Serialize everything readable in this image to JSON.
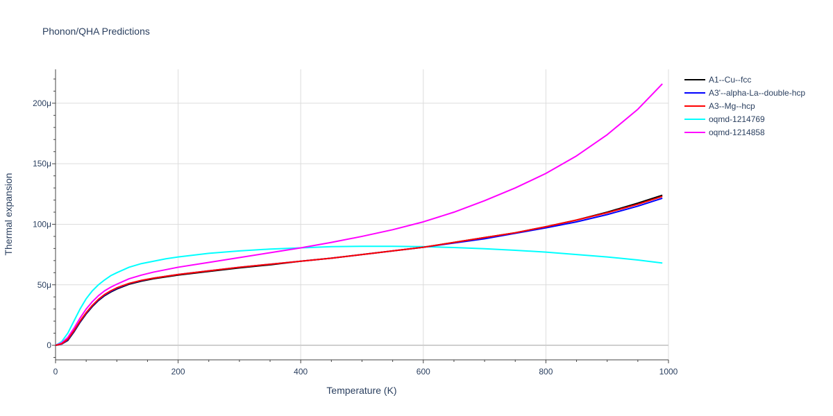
{
  "chart_data": {
    "type": "line",
    "title": "Phonon/QHA Predictions",
    "xlabel": "Temperature (K)",
    "ylabel": "Thermal expansion",
    "xlim": [
      0,
      1000
    ],
    "ylim": [
      -12,
      228
    ],
    "x_ticks": [
      0,
      200,
      400,
      600,
      800,
      1000
    ],
    "x_tick_labels": [
      "0",
      "200",
      "400",
      "600",
      "800",
      "1000"
    ],
    "y_ticks": [
      0,
      50,
      100,
      150,
      200
    ],
    "y_tick_labels": [
      "0",
      "50μ",
      "100μ",
      "150μ",
      "200μ"
    ],
    "grid": true,
    "legend_position": "top-right",
    "series": [
      {
        "name": "A1--Cu--fcc",
        "color": "#000000",
        "x": [
          0,
          10,
          20,
          30,
          40,
          50,
          60,
          70,
          80,
          90,
          100,
          120,
          140,
          160,
          180,
          200,
          250,
          300,
          350,
          400,
          450,
          500,
          550,
          600,
          650,
          700,
          750,
          800,
          850,
          900,
          950,
          990
        ],
        "y": [
          0,
          1,
          4,
          11,
          19,
          26,
          32,
          37,
          41,
          44,
          46.5,
          50.5,
          53,
          55,
          56.5,
          58,
          61,
          64,
          66.5,
          69.5,
          72,
          75,
          78,
          81,
          85,
          89,
          93,
          98,
          103.5,
          110,
          117.5,
          124
        ]
      },
      {
        "name": "A3'--alpha-La--double-hcp",
        "color": "#0000ff",
        "x": [
          0,
          10,
          20,
          30,
          40,
          50,
          60,
          70,
          80,
          90,
          100,
          120,
          140,
          160,
          180,
          200,
          250,
          300,
          350,
          400,
          450,
          500,
          550,
          600,
          650,
          700,
          750,
          800,
          850,
          900,
          950,
          990
        ],
        "y": [
          0,
          1,
          4.5,
          11.5,
          19.5,
          26.5,
          32.5,
          37.5,
          41.5,
          44.5,
          47,
          51,
          53.5,
          55.5,
          57,
          58.5,
          61.5,
          64.5,
          67,
          69.5,
          72,
          75,
          78,
          81,
          84.5,
          88,
          92.5,
          97,
          102,
          108,
          115,
          121.5
        ]
      },
      {
        "name": "A3--Mg--hcp",
        "color": "#ff0000",
        "x": [
          0,
          10,
          20,
          30,
          40,
          50,
          60,
          70,
          80,
          90,
          100,
          120,
          140,
          160,
          180,
          200,
          250,
          300,
          350,
          400,
          450,
          500,
          550,
          600,
          650,
          700,
          750,
          800,
          850,
          900,
          950,
          990
        ],
        "y": [
          0,
          1.2,
          5,
          12,
          20,
          27,
          33,
          38,
          42,
          45,
          47.5,
          51.2,
          53.7,
          55.5,
          57,
          58.5,
          61.5,
          64.5,
          67,
          69.5,
          72,
          75,
          78,
          81,
          85,
          89,
          93,
          98,
          103.5,
          109.5,
          116.5,
          123
        ]
      },
      {
        "name": "oqmd-1214769",
        "color": "#00ffff",
        "x": [
          0,
          10,
          20,
          30,
          40,
          50,
          60,
          70,
          80,
          90,
          100,
          120,
          140,
          160,
          180,
          200,
          250,
          300,
          350,
          400,
          450,
          500,
          550,
          600,
          650,
          700,
          750,
          800,
          850,
          900,
          950,
          990
        ],
        "y": [
          0,
          3,
          10,
          20,
          30,
          38.5,
          45,
          50,
          54,
          57.5,
          60,
          64.5,
          67.5,
          69.5,
          71.5,
          73,
          76,
          78,
          79.5,
          80.5,
          81.5,
          81.8,
          81.8,
          81.5,
          80.8,
          79.8,
          78.5,
          77,
          75,
          73,
          70.5,
          68
        ]
      },
      {
        "name": "oqmd-1214858",
        "color": "#ff00ff",
        "x": [
          0,
          10,
          20,
          30,
          40,
          50,
          60,
          70,
          80,
          90,
          100,
          120,
          140,
          160,
          180,
          200,
          250,
          300,
          350,
          400,
          450,
          500,
          550,
          600,
          650,
          700,
          750,
          800,
          850,
          900,
          950,
          990
        ],
        "y": [
          0,
          2,
          6.5,
          14,
          22.5,
          30,
          36,
          41,
          45,
          48,
          50.5,
          55,
          58,
          60.5,
          62.5,
          64.5,
          68.5,
          72.5,
          76.5,
          80.5,
          85,
          90,
          95.5,
          102,
          110,
          119.5,
          130,
          142,
          156.5,
          174,
          195,
          216
        ]
      }
    ]
  }
}
